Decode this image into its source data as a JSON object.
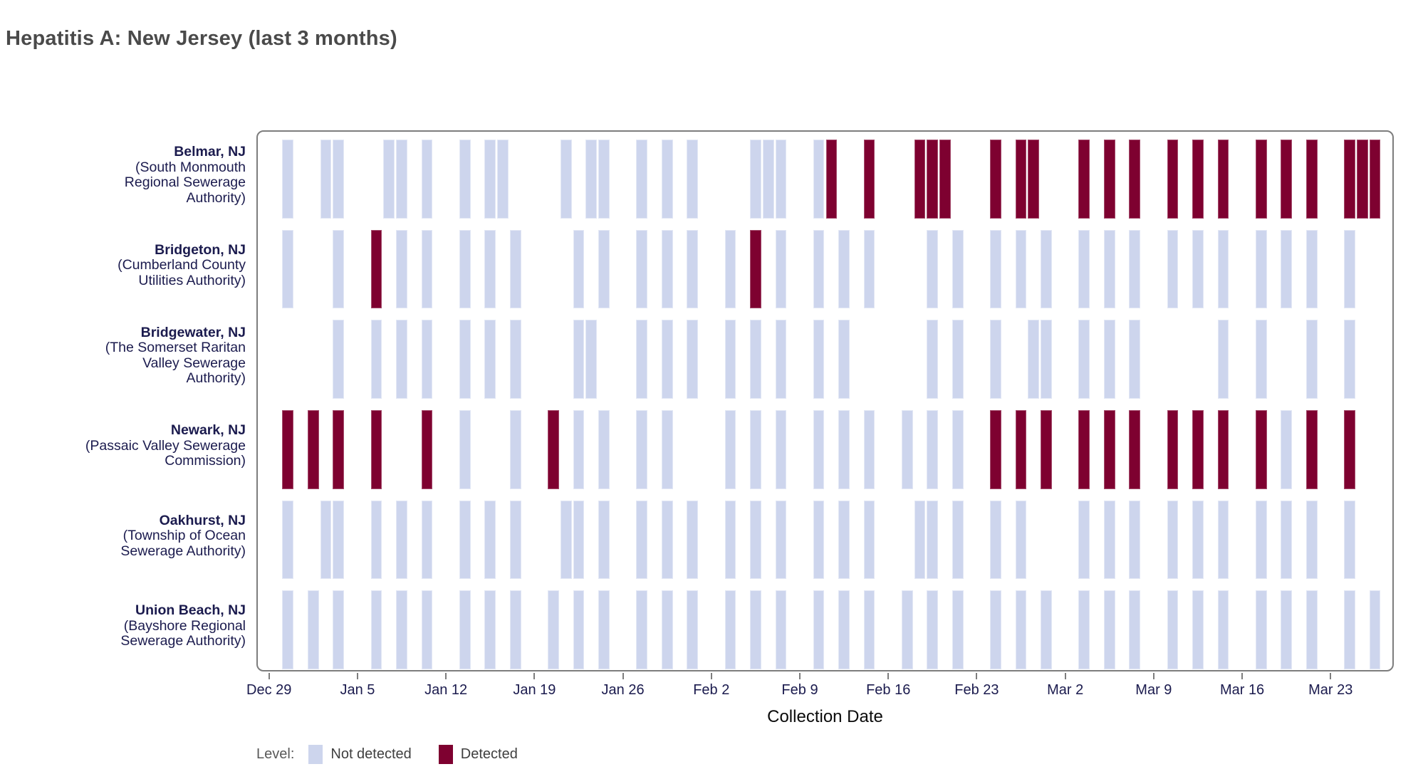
{
  "title": "Hepatitis A: New Jersey (last 3 months)",
  "colors": {
    "not_detected": "#cdd5ed",
    "detected": "#7e0130",
    "axis_text": "#1b1b4e",
    "title_text": "#4a4a4a",
    "frame": "#7d7d7d"
  },
  "chart_data": {
    "type": "heatmap",
    "title": "Hepatitis A: New Jersey (last 3 months)",
    "xlabel": "Collection Date",
    "ylabel": "",
    "x_domain": [
      "Dec 28",
      "Mar 27"
    ],
    "x_ticks": [
      "Dec 29",
      "Jan 5",
      "Jan 12",
      "Jan 19",
      "Jan 26",
      "Feb 2",
      "Feb 9",
      "Feb 16",
      "Feb 23",
      "Mar 2",
      "Mar 9",
      "Mar 16",
      "Mar 23"
    ],
    "grid": false,
    "legend_position": "bottom-left",
    "legend": {
      "label": "Level:",
      "items": [
        {
          "label": "Not detected",
          "color": "#cdd5ed"
        },
        {
          "label": "Detected",
          "color": "#7e0130"
        }
      ]
    },
    "samples_format": "[collection_date, detected(0=not detected,1=detected)]",
    "sites": [
      {
        "city": "Belmar, NJ",
        "authority_lines": [
          "(South Monmouth",
          "Regional Sewerage",
          "Authority)"
        ],
        "samples": [
          [
            "Dec 30",
            0
          ],
          [
            "Jan 2",
            0
          ],
          [
            "Jan 3",
            0
          ],
          [
            "Jan 7",
            0
          ],
          [
            "Jan 8",
            0
          ],
          [
            "Jan 10",
            0
          ],
          [
            "Jan 13",
            0
          ],
          [
            "Jan 15",
            0
          ],
          [
            "Jan 16",
            0
          ],
          [
            "Jan 21",
            0
          ],
          [
            "Jan 23",
            0
          ],
          [
            "Jan 24",
            0
          ],
          [
            "Jan 27",
            0
          ],
          [
            "Jan 29",
            0
          ],
          [
            "Jan 31",
            0
          ],
          [
            "Feb 5",
            0
          ],
          [
            "Feb 6",
            0
          ],
          [
            "Feb 7",
            0
          ],
          [
            "Feb 10",
            0
          ],
          [
            "Feb 11",
            1
          ],
          [
            "Feb 14",
            1
          ],
          [
            "Feb 18",
            1
          ],
          [
            "Feb 19",
            1
          ],
          [
            "Feb 20",
            1
          ],
          [
            "Feb 24",
            1
          ],
          [
            "Feb 26",
            1
          ],
          [
            "Feb 27",
            1
          ],
          [
            "Mar 3",
            1
          ],
          [
            "Mar 5",
            1
          ],
          [
            "Mar 7",
            1
          ],
          [
            "Mar 10",
            1
          ],
          [
            "Mar 12",
            1
          ],
          [
            "Mar 14",
            1
          ],
          [
            "Mar 17",
            1
          ],
          [
            "Mar 19",
            1
          ],
          [
            "Mar 21",
            1
          ],
          [
            "Mar 24",
            1
          ],
          [
            "Mar 25",
            1
          ],
          [
            "Mar 26",
            1
          ]
        ]
      },
      {
        "city": "Bridgeton, NJ",
        "authority_lines": [
          "(Cumberland County",
          "Utilities Authority)"
        ],
        "samples": [
          [
            "Dec 30",
            0
          ],
          [
            "Jan 3",
            0
          ],
          [
            "Jan 6",
            1
          ],
          [
            "Jan 8",
            0
          ],
          [
            "Jan 10",
            0
          ],
          [
            "Jan 13",
            0
          ],
          [
            "Jan 15",
            0
          ],
          [
            "Jan 17",
            0
          ],
          [
            "Jan 22",
            0
          ],
          [
            "Jan 24",
            0
          ],
          [
            "Jan 27",
            0
          ],
          [
            "Jan 29",
            0
          ],
          [
            "Jan 31",
            0
          ],
          [
            "Feb 3",
            0
          ],
          [
            "Feb 5",
            1
          ],
          [
            "Feb 7",
            0
          ],
          [
            "Feb 10",
            0
          ],
          [
            "Feb 12",
            0
          ],
          [
            "Feb 14",
            0
          ],
          [
            "Feb 19",
            0
          ],
          [
            "Feb 21",
            0
          ],
          [
            "Feb 24",
            0
          ],
          [
            "Feb 26",
            0
          ],
          [
            "Feb 28",
            0
          ],
          [
            "Mar 3",
            0
          ],
          [
            "Mar 5",
            0
          ],
          [
            "Mar 7",
            0
          ],
          [
            "Mar 10",
            0
          ],
          [
            "Mar 12",
            0
          ],
          [
            "Mar 14",
            0
          ],
          [
            "Mar 17",
            0
          ],
          [
            "Mar 19",
            0
          ],
          [
            "Mar 21",
            0
          ],
          [
            "Mar 24",
            0
          ]
        ]
      },
      {
        "city": "Bridgewater, NJ",
        "authority_lines": [
          "(The Somerset Raritan",
          "Valley Sewerage",
          "Authority)"
        ],
        "samples": [
          [
            "Jan 3",
            0
          ],
          [
            "Jan 6",
            0
          ],
          [
            "Jan 8",
            0
          ],
          [
            "Jan 10",
            0
          ],
          [
            "Jan 13",
            0
          ],
          [
            "Jan 15",
            0
          ],
          [
            "Jan 17",
            0
          ],
          [
            "Jan 22",
            0
          ],
          [
            "Jan 23",
            0
          ],
          [
            "Jan 27",
            0
          ],
          [
            "Jan 29",
            0
          ],
          [
            "Jan 31",
            0
          ],
          [
            "Feb 3",
            0
          ],
          [
            "Feb 5",
            0
          ],
          [
            "Feb 7",
            0
          ],
          [
            "Feb 10",
            0
          ],
          [
            "Feb 12",
            0
          ],
          [
            "Feb 19",
            0
          ],
          [
            "Feb 21",
            0
          ],
          [
            "Feb 24",
            0
          ],
          [
            "Feb 27",
            0
          ],
          [
            "Feb 28",
            0
          ],
          [
            "Mar 3",
            0
          ],
          [
            "Mar 5",
            0
          ],
          [
            "Mar 7",
            0
          ],
          [
            "Mar 14",
            0
          ],
          [
            "Mar 17",
            0
          ],
          [
            "Mar 21",
            0
          ],
          [
            "Mar 24",
            0
          ]
        ]
      },
      {
        "city": "Newark, NJ",
        "authority_lines": [
          "(Passaic Valley Sewerage",
          "Commission)"
        ],
        "samples": [
          [
            "Dec 30",
            1
          ],
          [
            "Jan 1",
            1
          ],
          [
            "Jan 3",
            1
          ],
          [
            "Jan 6",
            1
          ],
          [
            "Jan 10",
            1
          ],
          [
            "Jan 13",
            0
          ],
          [
            "Jan 17",
            0
          ],
          [
            "Jan 20",
            1
          ],
          [
            "Jan 22",
            0
          ],
          [
            "Jan 24",
            0
          ],
          [
            "Jan 27",
            0
          ],
          [
            "Jan 29",
            0
          ],
          [
            "Feb 3",
            0
          ],
          [
            "Feb 5",
            0
          ],
          [
            "Feb 7",
            0
          ],
          [
            "Feb 10",
            0
          ],
          [
            "Feb 12",
            0
          ],
          [
            "Feb 14",
            0
          ],
          [
            "Feb 17",
            0
          ],
          [
            "Feb 19",
            0
          ],
          [
            "Feb 21",
            0
          ],
          [
            "Feb 24",
            1
          ],
          [
            "Feb 26",
            1
          ],
          [
            "Feb 28",
            1
          ],
          [
            "Mar 3",
            1
          ],
          [
            "Mar 5",
            1
          ],
          [
            "Mar 7",
            1
          ],
          [
            "Mar 10",
            1
          ],
          [
            "Mar 12",
            1
          ],
          [
            "Mar 14",
            1
          ],
          [
            "Mar 17",
            1
          ],
          [
            "Mar 19",
            0
          ],
          [
            "Mar 21",
            1
          ],
          [
            "Mar 24",
            1
          ]
        ]
      },
      {
        "city": "Oakhurst, NJ",
        "authority_lines": [
          "(Township of Ocean",
          "Sewerage Authority)"
        ],
        "samples": [
          [
            "Dec 30",
            0
          ],
          [
            "Jan 2",
            0
          ],
          [
            "Jan 3",
            0
          ],
          [
            "Jan 6",
            0
          ],
          [
            "Jan 8",
            0
          ],
          [
            "Jan 10",
            0
          ],
          [
            "Jan 13",
            0
          ],
          [
            "Jan 15",
            0
          ],
          [
            "Jan 17",
            0
          ],
          [
            "Jan 21",
            0
          ],
          [
            "Jan 22",
            0
          ],
          [
            "Jan 24",
            0
          ],
          [
            "Jan 27",
            0
          ],
          [
            "Jan 29",
            0
          ],
          [
            "Jan 31",
            0
          ],
          [
            "Feb 3",
            0
          ],
          [
            "Feb 5",
            0
          ],
          [
            "Feb 7",
            0
          ],
          [
            "Feb 10",
            0
          ],
          [
            "Feb 12",
            0
          ],
          [
            "Feb 14",
            0
          ],
          [
            "Feb 18",
            0
          ],
          [
            "Feb 19",
            0
          ],
          [
            "Feb 21",
            0
          ],
          [
            "Feb 24",
            0
          ],
          [
            "Feb 26",
            0
          ],
          [
            "Mar 3",
            0
          ],
          [
            "Mar 5",
            0
          ],
          [
            "Mar 7",
            0
          ],
          [
            "Mar 10",
            0
          ],
          [
            "Mar 12",
            0
          ],
          [
            "Mar 14",
            0
          ],
          [
            "Mar 17",
            0
          ],
          [
            "Mar 19",
            0
          ],
          [
            "Mar 21",
            0
          ],
          [
            "Mar 24",
            0
          ]
        ]
      },
      {
        "city": "Union Beach, NJ",
        "authority_lines": [
          "(Bayshore Regional",
          "Sewerage Authority)"
        ],
        "samples": [
          [
            "Dec 30",
            0
          ],
          [
            "Jan 1",
            0
          ],
          [
            "Jan 3",
            0
          ],
          [
            "Jan 6",
            0
          ],
          [
            "Jan 8",
            0
          ],
          [
            "Jan 10",
            0
          ],
          [
            "Jan 13",
            0
          ],
          [
            "Jan 15",
            0
          ],
          [
            "Jan 17",
            0
          ],
          [
            "Jan 20",
            0
          ],
          [
            "Jan 22",
            0
          ],
          [
            "Jan 24",
            0
          ],
          [
            "Jan 27",
            0
          ],
          [
            "Jan 29",
            0
          ],
          [
            "Jan 31",
            0
          ],
          [
            "Feb 3",
            0
          ],
          [
            "Feb 5",
            0
          ],
          [
            "Feb 7",
            0
          ],
          [
            "Feb 10",
            0
          ],
          [
            "Feb 12",
            0
          ],
          [
            "Feb 14",
            0
          ],
          [
            "Feb 17",
            0
          ],
          [
            "Feb 19",
            0
          ],
          [
            "Feb 21",
            0
          ],
          [
            "Feb 24",
            0
          ],
          [
            "Feb 26",
            0
          ],
          [
            "Feb 28",
            0
          ],
          [
            "Mar 3",
            0
          ],
          [
            "Mar 5",
            0
          ],
          [
            "Mar 7",
            0
          ],
          [
            "Mar 10",
            0
          ],
          [
            "Mar 12",
            0
          ],
          [
            "Mar 14",
            0
          ],
          [
            "Mar 17",
            0
          ],
          [
            "Mar 19",
            0
          ],
          [
            "Mar 21",
            0
          ],
          [
            "Mar 24",
            0
          ],
          [
            "Mar 26",
            0
          ]
        ]
      }
    ]
  }
}
